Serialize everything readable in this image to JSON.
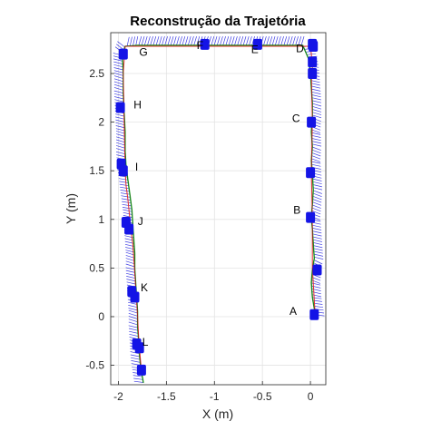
{
  "chart_data": {
    "type": "line",
    "title": "Reconstrução da Trajetória",
    "xlabel": "X (m)",
    "ylabel": "Y (m)",
    "xlim": [
      -2.08,
      0.16
    ],
    "ylim": [
      -0.7,
      2.92
    ],
    "xticks": [
      -2,
      -1.5,
      -1,
      -0.5,
      0
    ],
    "xtick_labels": [
      "-2",
      "-1.5",
      "-1",
      "-0.5",
      "0"
    ],
    "yticks": [
      -0.5,
      0,
      0.5,
      1,
      1.5,
      2,
      2.5
    ],
    "ytick_labels": [
      "-0.5",
      "0",
      "0.5",
      "1",
      "1.5",
      "2",
      "2.5"
    ],
    "grid": true,
    "colors": {
      "pose_arrows": "#1f1fdd",
      "pose_markers": "#1414e6",
      "trajectory": "#2eb82e",
      "reference": "#e03030",
      "path": "#000000",
      "axes": "#262626",
      "grid": "#e3e3e3"
    },
    "series": [
      {
        "role": "trajectory",
        "x": [
          0.05,
          0.02,
          0.01,
          0.02,
          0.04,
          0.03,
          0.02,
          0.01,
          0.02,
          0.03,
          0.02,
          0.01,
          0.02,
          0.01,
          0.02,
          0.02,
          0.01,
          0.0,
          -0.02,
          -0.08,
          -0.2,
          -0.4,
          -0.6,
          -0.8,
          -1.0,
          -1.2,
          -1.4,
          -1.6,
          -1.8,
          -1.93,
          -1.96,
          -1.95,
          -1.95,
          -1.94,
          -1.93,
          -1.93,
          -1.92,
          -1.9,
          -1.88,
          -1.86,
          -1.85,
          -1.84,
          -1.83,
          -1.83,
          -1.82,
          -1.81,
          -1.8,
          -1.8,
          -1.79,
          -1.78,
          -1.77,
          -1.76,
          -1.75,
          -1.74
        ],
        "y": [
          0.02,
          0.2,
          0.35,
          0.48,
          0.6,
          0.75,
          0.9,
          1.02,
          1.15,
          1.3,
          1.48,
          1.6,
          1.75,
          1.9,
          2.05,
          2.2,
          2.35,
          2.5,
          2.65,
          2.79,
          2.79,
          2.79,
          2.79,
          2.79,
          2.79,
          2.79,
          2.79,
          2.79,
          2.79,
          2.78,
          2.7,
          2.5,
          2.3,
          2.1,
          1.9,
          1.7,
          1.55,
          1.4,
          1.25,
          1.1,
          0.95,
          0.8,
          0.65,
          0.5,
          0.35,
          0.2,
          0.05,
          -0.1,
          -0.25,
          -0.4,
          -0.5,
          -0.55,
          -0.62,
          -0.68
        ]
      },
      {
        "role": "reference",
        "x": [
          0.05,
          0.02,
          0.02,
          0.01,
          0.02,
          0.01,
          0.02,
          0.02,
          0.01,
          0.0,
          -1.93,
          -1.95,
          -1.94,
          -1.93,
          -1.92,
          -1.9,
          -1.87,
          -1.85,
          -1.84,
          -1.83,
          -1.82,
          -1.81,
          -1.8,
          -1.79,
          -1.77,
          -1.76
        ],
        "y": [
          0.0,
          0.5,
          1.0,
          1.5,
          2.0,
          2.5,
          2.55,
          2.6,
          2.7,
          2.78,
          2.78,
          2.5,
          2.0,
          1.5,
          1.35,
          1.2,
          0.9,
          0.75,
          0.6,
          0.45,
          0.3,
          0.15,
          0.0,
          -0.2,
          -0.45,
          -0.55
        ]
      }
    ],
    "pose_markers": {
      "x": [
        0.04,
        0.07,
        0.0,
        0.0,
        0.01,
        0.02,
        0.02,
        0.03,
        0.02,
        -0.55,
        -1.1,
        -1.95,
        -1.98,
        -1.97,
        -1.95,
        -1.92,
        -1.89,
        -1.86,
        -1.83,
        -1.81,
        -1.78,
        -1.76
      ],
      "y": [
        0.02,
        0.48,
        1.02,
        1.48,
        2.0,
        2.5,
        2.62,
        2.78,
        2.8,
        2.8,
        2.8,
        2.7,
        2.15,
        1.57,
        1.5,
        0.97,
        0.9,
        0.26,
        0.2,
        -0.28,
        -0.32,
        -0.55
      ]
    },
    "annotations": [
      {
        "text": "A",
        "x": -0.18,
        "y": 0.02
      },
      {
        "text": "B",
        "x": -0.14,
        "y": 1.06
      },
      {
        "text": "C",
        "x": -0.15,
        "y": 2.0
      },
      {
        "text": "D",
        "x": -0.11,
        "y": 2.72
      },
      {
        "text": "E",
        "x": -0.58,
        "y": 2.71
      },
      {
        "text": "F",
        "x": -1.15,
        "y": 2.75
      },
      {
        "text": "G",
        "x": -1.74,
        "y": 2.68
      },
      {
        "text": "H",
        "x": -1.8,
        "y": 2.14
      },
      {
        "text": "I",
        "x": -1.81,
        "y": 1.5
      },
      {
        "text": "J",
        "x": -1.77,
        "y": 0.94
      },
      {
        "text": "K",
        "x": -1.73,
        "y": 0.26
      },
      {
        "text": "L",
        "x": -1.72,
        "y": -0.3
      }
    ]
  }
}
